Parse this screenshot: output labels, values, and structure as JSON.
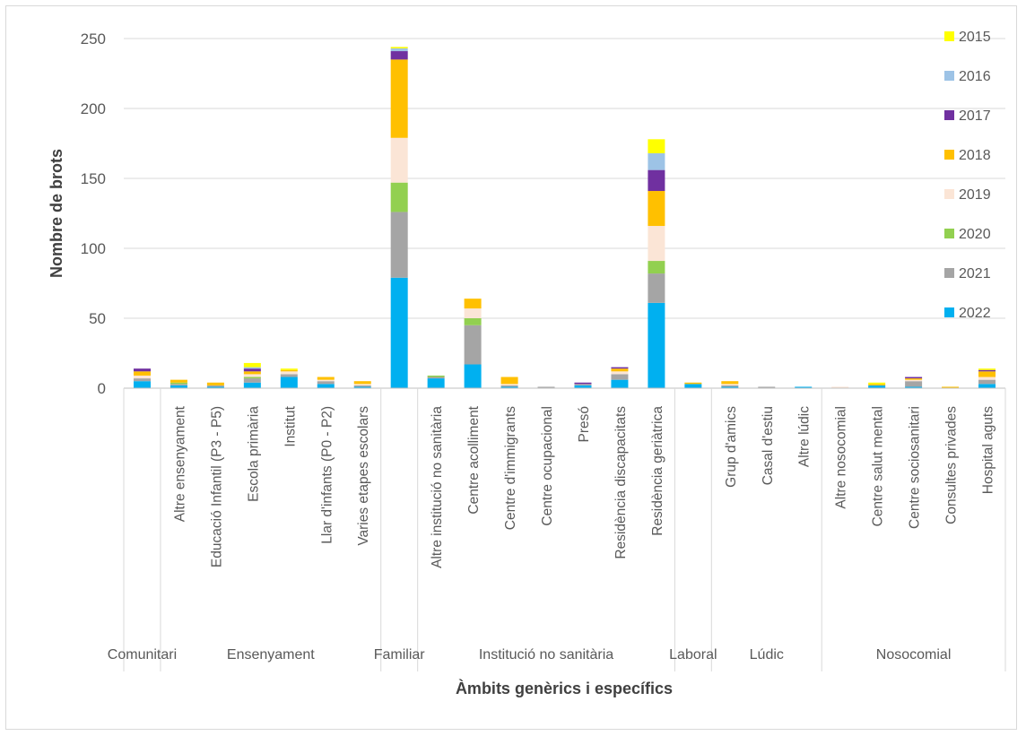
{
  "chart_data": {
    "type": "bar",
    "stacked": true,
    "xlabel": "Àmbits genèrics i específics",
    "ylabel": "Nombre de brots",
    "ylim": [
      0,
      250
    ],
    "yticks": [
      0,
      50,
      100,
      150,
      200,
      250
    ],
    "grid": true,
    "legend_position": "right",
    "legend": [
      "2015",
      "2016",
      "2017",
      "2018",
      "2019",
      "2020",
      "2021",
      "2022"
    ],
    "groups": [
      {
        "label": "Comunitari",
        "count": 1
      },
      {
        "label": "Ensenyament",
        "count": 6
      },
      {
        "label": "Familiar",
        "count": 1
      },
      {
        "label": "Institució no sanitària",
        "count": 7
      },
      {
        "label": "Laboral",
        "count": 1
      },
      {
        "label": "Lúdic",
        "count": 3
      },
      {
        "label": "Nosocomial",
        "count": 5
      }
    ],
    "categories": [
      "",
      "Altre ensenyament",
      "Educació Infantil (P3 - P5)",
      "Escola primària",
      "Institut",
      "Llar d'infants (P0 - P2)",
      "Varies etapes escolars",
      "",
      "Altre institució no sanitària",
      "Centre acolliment",
      "Centre d'immigrants",
      "Centre ocupacional",
      "Presó",
      "Residència discapacitats",
      "Residència geriàtrica",
      "",
      "Grup d'amics",
      "Casal d'estiu",
      "Altre lúdic",
      "Altre nosocomial",
      "Centre salut mental",
      "Centre sociosanitari",
      "Consultes privades",
      "Hospital aguts"
    ],
    "series": [
      {
        "name": "2022",
        "color": "#00b0f0",
        "values": [
          5,
          2,
          1,
          4,
          8,
          3,
          1,
          79,
          7,
          17,
          1,
          0,
          2,
          6,
          61,
          3,
          1,
          0,
          1,
          0,
          2,
          1,
          0,
          3
        ]
      },
      {
        "name": "2021",
        "color": "#a5a5a5",
        "values": [
          2,
          1,
          1,
          3,
          2,
          2,
          1,
          47,
          1,
          28,
          1,
          1,
          1,
          4,
          21,
          0,
          1,
          1,
          0,
          0,
          0,
          4,
          0,
          3
        ]
      },
      {
        "name": "2020",
        "color": "#92d050",
        "values": [
          0,
          1,
          0,
          1,
          0,
          0,
          0,
          21,
          1,
          5,
          0,
          0,
          0,
          0,
          9,
          0,
          0,
          0,
          0,
          0,
          0,
          0,
          0,
          0
        ]
      },
      {
        "name": "2019",
        "color": "#fbe5d6",
        "values": [
          2,
          0,
          0,
          2,
          2,
          1,
          1,
          32,
          0,
          7,
          1,
          0,
          0,
          2,
          25,
          0,
          1,
          0,
          0,
          1,
          0,
          1,
          0,
          2
        ]
      },
      {
        "name": "2018",
        "color": "#ffc000",
        "values": [
          3,
          2,
          2,
          2,
          1,
          2,
          2,
          56,
          0,
          7,
          5,
          0,
          0,
          2,
          25,
          1,
          2,
          0,
          0,
          0,
          1,
          1,
          1,
          4
        ]
      },
      {
        "name": "2017",
        "color": "#7030a0",
        "values": [
          2,
          0,
          0,
          2,
          0,
          0,
          0,
          6,
          0,
          0,
          0,
          0,
          1,
          1,
          15,
          0,
          0,
          0,
          0,
          0,
          0,
          1,
          0,
          1
        ]
      },
      {
        "name": "2016",
        "color": "#9dc3e6",
        "values": [
          0,
          0,
          0,
          1,
          0,
          0,
          0,
          2,
          0,
          0,
          0,
          0,
          0,
          0,
          12,
          0,
          0,
          0,
          0,
          0,
          0,
          0,
          0,
          0
        ]
      },
      {
        "name": "2015",
        "color": "#ffff00",
        "values": [
          0,
          0,
          0,
          3,
          1,
          0,
          0,
          1,
          0,
          0,
          0,
          0,
          0,
          0,
          10,
          0,
          0,
          0,
          0,
          0,
          1,
          0,
          0,
          1
        ]
      }
    ]
  }
}
